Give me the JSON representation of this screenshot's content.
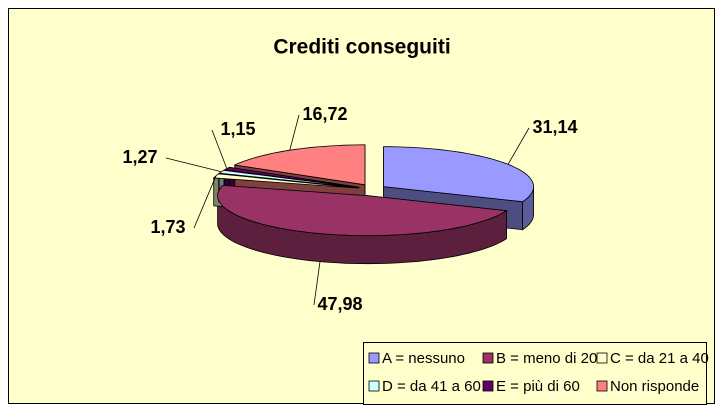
{
  "chart_data": {
    "type": "pie",
    "title": "Crediti conseguiti",
    "categories": [
      "A = nessuno",
      "B = meno di 20",
      "C = da 21 a 40",
      "D = da 41 a 60",
      "E = più di 60",
      "Non risponde"
    ],
    "values": [
      31.14,
      47.98,
      1.73,
      1.27,
      1.15,
      16.72
    ],
    "value_labels": [
      "31,14",
      "47,98",
      "1,73",
      "1,27",
      "1,15",
      "16,72"
    ],
    "colors": [
      "#9999ff",
      "#993366",
      "#ffffcc",
      "#ccffff",
      "#660066",
      "#ff8080"
    ],
    "legend": "bottom"
  }
}
